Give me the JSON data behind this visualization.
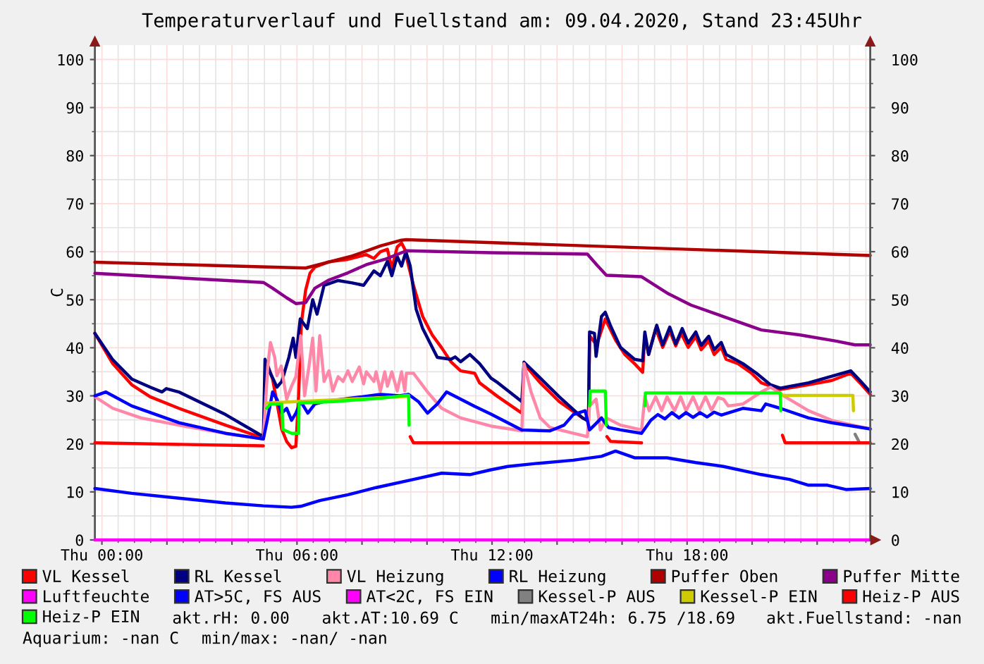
{
  "chart_data": {
    "type": "line",
    "title": "Temperaturverlauf und Fuellstand am: 09.04.2020, Stand 23:45Uhr",
    "ylabel": "C",
    "xlim": [
      "2020-04-08T23:47",
      "2020-04-09T23:38"
    ],
    "xticks": [
      {
        "value": "2020-04-09T00:00",
        "label": "Thu 00:00"
      },
      {
        "value": "2020-04-09T02:00",
        "label": null
      },
      {
        "value": "2020-04-09T04:00",
        "label": null
      },
      {
        "value": "2020-04-09T06:00",
        "label": "Thu 06:00"
      },
      {
        "value": "2020-04-09T08:00",
        "label": null
      },
      {
        "value": "2020-04-09T10:00",
        "label": null
      },
      {
        "value": "2020-04-09T12:00",
        "label": "Thu 12:00"
      },
      {
        "value": "2020-04-09T14:00",
        "label": null
      },
      {
        "value": "2020-04-09T16:00",
        "label": null
      },
      {
        "value": "2020-04-09T18:00",
        "label": "Thu 18:00"
      },
      {
        "value": "2020-04-09T20:00",
        "label": null
      },
      {
        "value": "2020-04-09T22:00",
        "label": null
      }
    ],
    "ylim": [
      0,
      103
    ],
    "yticks": [
      0,
      10,
      20,
      30,
      40,
      50,
      60,
      70,
      80,
      90,
      100
    ],
    "y2lim": [
      0,
      103
    ],
    "y2ticks": [
      0,
      10,
      20,
      30,
      40,
      50,
      60,
      70,
      80,
      90,
      100
    ],
    "grid": true,
    "legend": "bottom",
    "series": [
      {
        "name": "VL Kessel",
        "color": "#ff0000",
        "x": [
          "2020-04-08T23:47",
          "2020-04-09T00:20",
          "2020-04-09T00:55",
          "2020-04-09T01:29",
          "2020-04-09T02:22",
          "2020-04-09T03:48",
          "2020-04-09T04:58",
          "2020-04-09T05:04",
          "2020-04-09T05:15",
          "2020-04-09T05:32",
          "2020-04-09T05:41",
          "2020-04-09T05:50",
          "2020-04-09T05:58",
          "2020-04-09T06:03",
          "2020-04-09T06:08",
          "2020-04-09T06:16",
          "2020-04-09T06:24",
          "2020-04-09T06:33",
          "2020-04-09T06:59",
          "2020-04-09T07:34",
          "2020-04-09T08:08",
          "2020-04-09T08:22",
          "2020-04-09T08:34",
          "2020-04-09T08:47",
          "2020-04-09T08:55",
          "2020-04-09T09:05",
          "2020-04-09T09:13",
          "2020-04-09T09:19",
          "2020-04-09T09:26",
          "2020-04-09T09:35",
          "2020-04-09T09:52",
          "2020-04-09T10:10",
          "2020-04-09T10:27",
          "2020-04-09T10:44",
          "2020-04-09T11:02",
          "2020-04-09T11:28",
          "2020-04-09T11:37",
          "2020-04-09T12:11",
          "2020-04-09T12:55",
          "2020-04-09T12:59",
          "2020-04-09T13:29",
          "2020-04-09T14:04",
          "2020-04-09T14:47",
          "2020-04-09T14:58",
          "2020-04-09T15:00",
          "2020-04-09T15:13",
          "2020-04-09T15:29",
          "2020-04-09T15:48",
          "2020-04-09T16:05",
          "2020-04-09T16:23",
          "2020-04-09T16:38",
          "2020-04-09T16:42",
          "2020-04-09T16:49",
          "2020-04-09T17:02",
          "2020-04-09T17:15",
          "2020-04-09T17:28",
          "2020-04-09T17:39",
          "2020-04-09T17:49",
          "2020-04-09T18:02",
          "2020-04-09T18:16",
          "2020-04-09T18:26",
          "2020-04-09T18:40",
          "2020-04-09T18:50",
          "2020-04-09T19:03",
          "2020-04-09T19:12",
          "2020-04-09T19:34",
          "2020-04-09T19:59",
          "2020-04-09T20:17",
          "2020-04-09T20:52",
          "2020-04-09T21:44",
          "2020-04-09T22:27",
          "2020-04-09T23:02",
          "2020-04-09T23:19",
          "2020-04-09T23:38"
        ],
        "values": [
          43.0,
          36.7,
          32.3,
          29.8,
          27.4,
          23.9,
          21.2,
          37.0,
          33.5,
          23.0,
          20.5,
          19.2,
          19.5,
          30.0,
          45.0,
          52.0,
          55.5,
          56.8,
          57.9,
          58.4,
          59.4,
          58.6,
          60.0,
          60.5,
          56.5,
          61.0,
          61.8,
          60.5,
          57.0,
          53.0,
          46.5,
          42.6,
          40.0,
          37.1,
          35.2,
          34.7,
          32.7,
          29.8,
          26.4,
          36.7,
          32.7,
          28.8,
          25.4,
          24.9,
          42.5,
          40.6,
          46.0,
          41.6,
          38.6,
          36.7,
          34.9,
          42.5,
          38.6,
          44.0,
          40.1,
          43.5,
          40.4,
          43.0,
          40.1,
          42.3,
          39.6,
          41.4,
          38.6,
          40.1,
          37.6,
          36.7,
          34.7,
          32.7,
          31.3,
          32.3,
          33.2,
          34.7,
          32.7,
          30.3
        ]
      },
      {
        "name": "RL Kessel",
        "color": "#000080",
        "x": [
          "2020-04-08T23:47",
          "2020-04-09T00:20",
          "2020-04-09T00:55",
          "2020-04-09T01:29",
          "2020-04-09T01:51",
          "2020-04-09T01:59",
          "2020-04-09T02:22",
          "2020-04-09T03:48",
          "2020-04-09T04:58",
          "2020-04-09T05:01",
          "2020-04-09T05:11",
          "2020-04-09T05:23",
          "2020-04-09T05:32",
          "2020-04-09T05:45",
          "2020-04-09T05:53",
          "2020-04-09T05:58",
          "2020-04-09T06:06",
          "2020-04-09T06:19",
          "2020-04-09T06:29",
          "2020-04-09T06:37",
          "2020-04-09T06:50",
          "2020-04-09T07:16",
          "2020-04-09T07:42",
          "2020-04-09T08:03",
          "2020-04-09T08:22",
          "2020-04-09T08:34",
          "2020-04-09T08:47",
          "2020-04-09T08:55",
          "2020-04-09T09:05",
          "2020-04-09T09:13",
          "2020-04-09T09:21",
          "2020-04-09T09:29",
          "2020-04-09T09:40",
          "2020-04-09T09:52",
          "2020-04-09T10:19",
          "2020-04-09T10:44",
          "2020-04-09T10:52",
          "2020-04-09T11:02",
          "2020-04-09T11:19",
          "2020-04-09T11:37",
          "2020-04-09T11:58",
          "2020-04-09T12:11",
          "2020-04-09T12:55",
          "2020-04-09T12:59",
          "2020-04-09T13:29",
          "2020-04-09T14:04",
          "2020-04-09T14:47",
          "2020-04-09T14:58",
          "2020-04-09T15:00",
          "2020-04-09T15:09",
          "2020-04-09T15:12",
          "2020-04-09T15:22",
          "2020-04-09T15:29",
          "2020-04-09T15:39",
          "2020-04-09T15:57",
          "2020-04-09T16:23",
          "2020-04-09T16:38",
          "2020-04-09T16:42",
          "2020-04-09T16:49",
          "2020-04-09T17:04",
          "2020-04-09T17:15",
          "2020-04-09T17:28",
          "2020-04-09T17:39",
          "2020-04-09T17:51",
          "2020-04-09T18:02",
          "2020-04-09T18:16",
          "2020-04-09T18:26",
          "2020-04-09T18:40",
          "2020-04-09T18:50",
          "2020-04-09T19:03",
          "2020-04-09T19:12",
          "2020-04-09T19:43",
          "2020-04-09T20:08",
          "2020-04-09T20:34",
          "2020-04-09T20:52",
          "2020-04-09T21:44",
          "2020-04-09T23:02",
          "2020-04-09T23:19",
          "2020-04-09T23:38"
        ],
        "values": [
          43.0,
          37.5,
          33.5,
          31.8,
          30.8,
          31.5,
          30.8,
          26.1,
          21.5,
          37.6,
          34.7,
          31.8,
          33.0,
          38.0,
          42.0,
          38.0,
          46.0,
          44.0,
          50.0,
          47.0,
          53.0,
          54.0,
          53.5,
          53.0,
          56.0,
          55.0,
          58.0,
          55.0,
          59.0,
          57.0,
          60.0,
          57.0,
          48.0,
          44.0,
          38.0,
          37.6,
          38.1,
          37.1,
          38.6,
          36.7,
          33.7,
          32.7,
          28.8,
          37.0,
          33.7,
          29.8,
          25.4,
          24.7,
          43.3,
          43.0,
          38.2,
          46.5,
          47.4,
          44.5,
          40.1,
          37.6,
          37.3,
          43.3,
          38.6,
          44.7,
          40.6,
          44.3,
          40.8,
          44.0,
          41.0,
          43.3,
          40.5,
          42.4,
          39.6,
          41.1,
          38.6,
          36.7,
          34.7,
          32.3,
          31.6,
          32.7,
          35.2,
          33.2,
          30.8
        ]
      },
      {
        "name": "VL Heizung",
        "color": "#ff88a8",
        "x": [
          "2020-04-08T23:47",
          "2020-04-09T00:20",
          "2020-04-09T01:12",
          "2020-04-09T02:22",
          "2020-04-09T03:48",
          "2020-04-09T04:58",
          "2020-04-09T05:06",
          "2020-04-09T05:11",
          "2020-04-09T05:19",
          "2020-04-09T05:23",
          "2020-04-09T05:31",
          "2020-04-09T05:41",
          "2020-04-09T05:50",
          "2020-04-09T05:58",
          "2020-04-09T06:07",
          "2020-04-09T06:14",
          "2020-04-09T06:22",
          "2020-04-09T06:29",
          "2020-04-09T06:35",
          "2020-04-09T06:42",
          "2020-04-09T06:50",
          "2020-04-09T06:59",
          "2020-04-09T07:06",
          "2020-04-09T07:16",
          "2020-04-09T07:25",
          "2020-04-09T07:34",
          "2020-04-09T07:42",
          "2020-04-09T07:55",
          "2020-04-09T08:03",
          "2020-04-09T08:08",
          "2020-04-09T08:22",
          "2020-04-09T08:26",
          "2020-04-09T08:34",
          "2020-04-09T08:42",
          "2020-04-09T08:47",
          "2020-04-09T08:55",
          "2020-04-09T09:05",
          "2020-04-09T09:13",
          "2020-04-09T09:19",
          "2020-04-09T09:22",
          "2020-04-09T09:35",
          "2020-04-09T10:01",
          "2020-04-09T10:27",
          "2020-04-09T11:02",
          "2020-04-09T11:58",
          "2020-04-09T12:55",
          "2020-04-09T12:59",
          "2020-04-09T13:12",
          "2020-04-09T13:29",
          "2020-04-09T13:47",
          "2020-04-09T14:30",
          "2020-04-09T14:56",
          "2020-04-09T15:00",
          "2020-04-09T15:12",
          "2020-04-09T15:20",
          "2020-04-09T15:31",
          "2020-04-09T15:57",
          "2020-04-09T16:36",
          "2020-04-09T16:42",
          "2020-04-09T16:50",
          "2020-04-09T17:02",
          "2020-04-09T17:13",
          "2020-04-09T17:23",
          "2020-04-09T17:37",
          "2020-04-09T17:48",
          "2020-04-09T17:58",
          "2020-04-09T18:11",
          "2020-04-09T18:22",
          "2020-04-09T18:34",
          "2020-04-09T18:45",
          "2020-04-09T18:57",
          "2020-04-09T19:07",
          "2020-04-09T19:16",
          "2020-04-09T19:43",
          "2020-04-09T20:17",
          "2020-04-09T20:34",
          "2020-04-09T21:01",
          "2020-04-09T21:44",
          "2020-04-09T22:27",
          "2020-04-09T23:38"
        ],
        "values": [
          29.8,
          27.4,
          25.4,
          23.9,
          22.2,
          21.0,
          36.0,
          41.1,
          38.0,
          34.2,
          36.2,
          29.3,
          32.0,
          34.0,
          42.5,
          30.0,
          36.0,
          42.0,
          31.0,
          42.5,
          33.0,
          35.2,
          31.0,
          34.0,
          33.0,
          35.2,
          33.0,
          36.0,
          32.5,
          35.0,
          33.0,
          35.0,
          31.0,
          35.0,
          32.0,
          35.0,
          31.0,
          35.0,
          31.0,
          34.7,
          34.7,
          30.8,
          27.4,
          25.4,
          23.7,
          22.7,
          36.7,
          30.8,
          25.4,
          23.4,
          22.2,
          21.5,
          27.9,
          29.3,
          22.9,
          25.4,
          23.9,
          22.9,
          29.8,
          26.9,
          29.8,
          26.9,
          29.8,
          26.9,
          29.8,
          26.9,
          29.8,
          26.9,
          29.8,
          27.0,
          29.6,
          29.3,
          27.9,
          28.3,
          30.8,
          31.8,
          29.8,
          26.9,
          24.9,
          23.1
        ]
      },
      {
        "name": "RL Heizung",
        "color": "#0000ff",
        "x": [
          "2020-04-08T23:47",
          "2020-04-09T00:07",
          "2020-04-09T00:55",
          "2020-04-09T02:22",
          "2020-04-09T03:48",
          "2020-04-09T04:58",
          "2020-04-09T05:06",
          "2020-04-09T05:15",
          "2020-04-09T05:23",
          "2020-04-09T05:32",
          "2020-04-09T05:41",
          "2020-04-09T05:50",
          "2020-04-09T05:58",
          "2020-04-09T06:07",
          "2020-04-09T06:20",
          "2020-04-09T06:33",
          "2020-04-09T06:50",
          "2020-04-09T07:25",
          "2020-04-09T08:00",
          "2020-04-09T08:34",
          "2020-04-09T09:09",
          "2020-04-09T09:26",
          "2020-04-09T09:44",
          "2020-04-09T10:01",
          "2020-04-09T10:19",
          "2020-04-09T10:36",
          "2020-04-09T11:02",
          "2020-04-09T11:28",
          "2020-04-09T11:58",
          "2020-04-09T12:29",
          "2020-04-09T12:55",
          "2020-04-09T13:47",
          "2020-04-09T14:13",
          "2020-04-09T14:30",
          "2020-04-09T14:52",
          "2020-04-09T15:00",
          "2020-04-09T15:09",
          "2020-04-09T15:22",
          "2020-04-09T15:35",
          "2020-04-09T15:57",
          "2020-04-09T16:36",
          "2020-04-09T16:53",
          "2020-04-09T17:06",
          "2020-04-09T17:19",
          "2020-04-09T17:32",
          "2020-04-09T17:45",
          "2020-04-09T17:58",
          "2020-04-09T18:11",
          "2020-04-09T18:24",
          "2020-04-09T18:37",
          "2020-04-09T18:50",
          "2020-04-09T19:03",
          "2020-04-09T19:43",
          "2020-04-09T20:17",
          "2020-04-09T20:25",
          "2020-04-09T20:52",
          "2020-04-09T21:44",
          "2020-04-09T22:27",
          "2020-04-09T23:38"
        ],
        "values": [
          30.0,
          30.8,
          27.9,
          24.4,
          22.2,
          21.0,
          25.4,
          30.8,
          29.3,
          26.4,
          27.4,
          24.9,
          26.4,
          28.8,
          26.4,
          28.3,
          28.8,
          29.3,
          29.8,
          30.3,
          30.0,
          30.3,
          28.8,
          26.4,
          28.3,
          30.8,
          29.3,
          27.8,
          26.2,
          24.4,
          22.9,
          22.7,
          23.9,
          26.1,
          26.9,
          22.9,
          23.9,
          25.4,
          23.4,
          22.9,
          22.2,
          24.9,
          26.1,
          25.2,
          26.5,
          25.4,
          26.5,
          25.5,
          26.5,
          25.6,
          26.6,
          26.0,
          27.4,
          26.9,
          28.3,
          27.4,
          25.4,
          24.4,
          23.1
        ]
      },
      {
        "name": "Puffer Oben",
        "color": "#b00000",
        "x": [
          "2020-04-08T23:47",
          "2020-04-09T06:16",
          "2020-04-09T07:42",
          "2020-04-09T08:34",
          "2020-04-09T09:13",
          "2020-04-09T09:22",
          "2020-04-09T23:38"
        ],
        "values": [
          57.8,
          56.6,
          59.1,
          61.2,
          62.4,
          62.5,
          59.2
        ]
      },
      {
        "name": "Puffer Mitte",
        "color": "#8b008b",
        "x": [
          "2020-04-08T23:47",
          "2020-04-09T04:58",
          "2020-04-09T05:15",
          "2020-04-09T05:41",
          "2020-04-09T05:58",
          "2020-04-09T06:16",
          "2020-04-09T06:33",
          "2020-04-09T06:59",
          "2020-04-09T07:34",
          "2020-04-09T08:08",
          "2020-04-09T08:42",
          "2020-04-09T09:22",
          "2020-04-09T11:58",
          "2020-04-09T14:56",
          "2020-04-09T15:13",
          "2020-04-09T15:31",
          "2020-04-09T16:36",
          "2020-04-09T17:23",
          "2020-04-09T18:07",
          "2020-04-09T19:07",
          "2020-04-09T20:17",
          "2020-04-09T21:27",
          "2020-04-09T22:35",
          "2020-04-09T23:10",
          "2020-04-09T23:38"
        ],
        "values": [
          55.5,
          53.6,
          52.4,
          50.4,
          49.2,
          49.4,
          52.4,
          54.1,
          55.6,
          57.3,
          58.4,
          60.2,
          59.8,
          59.5,
          57.3,
          55.1,
          54.8,
          51.4,
          48.9,
          46.5,
          43.7,
          42.7,
          41.4,
          40.6,
          40.6
        ]
      },
      {
        "name": "Luftfeuchte",
        "color": "#ff00ff",
        "x": [
          "2020-04-08T23:47",
          "2020-04-09T23:38"
        ],
        "values": [
          0,
          0
        ]
      },
      {
        "name": "AT>5C, FS AUS",
        "color": "#0000ff",
        "x": [
          "2020-04-08T23:47",
          "2020-04-09T00:55",
          "2020-04-09T02:22",
          "2020-04-09T03:48",
          "2020-04-09T04:58",
          "2020-04-09T05:50",
          "2020-04-09T06:07",
          "2020-04-09T06:42",
          "2020-04-09T07:34",
          "2020-04-09T08:26",
          "2020-04-09T09:35",
          "2020-04-09T10:27",
          "2020-04-09T11:19",
          "2020-04-09T11:58",
          "2020-04-09T12:29",
          "2020-04-09T13:20",
          "2020-04-09T14:30",
          "2020-04-09T15:22",
          "2020-04-09T15:48",
          "2020-04-09T16:23",
          "2020-04-09T17:23",
          "2020-04-09T18:16",
          "2020-04-09T19:07",
          "2020-04-09T20:17",
          "2020-04-09T21:09",
          "2020-04-09T21:44",
          "2020-04-09T22:19",
          "2020-04-09T22:53",
          "2020-04-09T23:38"
        ],
        "values": [
          10.7,
          9.7,
          8.7,
          7.7,
          7.1,
          6.8,
          7.0,
          8.2,
          9.4,
          10.9,
          12.6,
          13.9,
          13.6,
          14.6,
          15.3,
          15.9,
          16.6,
          17.4,
          18.5,
          17.1,
          17.1,
          16.1,
          15.3,
          13.6,
          12.6,
          11.4,
          11.4,
          10.5,
          10.7
        ]
      },
      {
        "name": "AT<2C, FS EIN",
        "color": "#ff00ff"
      },
      {
        "name": "Kessel-P AUS",
        "color": "#808080",
        "x": [
          "2020-04-09T23:10",
          "2020-04-09T23:17"
        ],
        "values": [
          22.0,
          20.5
        ]
      },
      {
        "name": "Kessel-P EIN",
        "color": "#cccc00",
        "x": [
          "2020-04-09T05:04",
          "2020-04-09T09:26",
          "2020-04-09T09:27",
          "2020-04-09T20:52",
          "2020-04-09T23:06",
          "2020-04-09T23:07"
        ],
        "values": [
          28.5,
          29.9,
          null,
          30.1,
          30.1,
          26.9
        ]
      },
      {
        "name": "Heiz-P AUS",
        "color": "#ff0000",
        "x": [
          "2020-04-08T23:47",
          "2020-04-09T04:58",
          "2020-04-09T04:59",
          "2020-04-09T09:29",
          "2020-04-09T09:35",
          "2020-04-09T14:58",
          "2020-04-09T14:59",
          "2020-04-09T15:32",
          "2020-04-09T15:39",
          "2020-04-09T16:36",
          "2020-04-09T16:37",
          "2020-04-09T20:56",
          "2020-04-09T21:01",
          "2020-04-09T23:38"
        ],
        "values": [
          20.2,
          19.6,
          null,
          21.5,
          20.2,
          20.2,
          null,
          21.5,
          20.5,
          20.2,
          null,
          21.8,
          20.2,
          20.2
        ]
      },
      {
        "name": "Heiz-P EIN",
        "color": "#00ff00",
        "x": [
          "2020-04-09T05:04",
          "2020-04-09T05:11",
          "2020-04-09T05:32",
          "2020-04-09T05:34",
          "2020-04-09T05:50",
          "2020-04-09T06:03",
          "2020-04-09T06:04",
          "2020-04-09T07:08",
          "2020-04-09T08:34",
          "2020-04-09T09:22",
          "2020-04-09T09:26",
          "2020-04-09T09:27",
          "2020-04-09T09:28",
          "2020-04-09T15:00",
          "2020-04-09T15:01",
          "2020-04-09T15:29",
          "2020-04-09T15:31",
          "2020-04-09T15:32",
          "2020-04-09T16:42",
          "2020-04-09T16:43",
          "2020-04-09T20:52",
          "2020-04-09T20:53"
        ],
        "values": [
          27.4,
          28.3,
          28.3,
          23.0,
          22.2,
          22.2,
          28.5,
          28.8,
          29.5,
          30.1,
          30.1,
          23.9,
          null,
          27.9,
          31.0,
          31.0,
          23.9,
          null,
          27.9,
          30.6,
          30.6,
          26.9
        ]
      }
    ],
    "annotations": [
      "akt.rH: 0.00",
      "akt.AT:10.69 C",
      "min/maxAT24h: 6.75 /18.69",
      "akt.Fuellstand: -nan",
      "Aquarium: -nan C",
      "min/max: -nan/ -nan"
    ]
  }
}
